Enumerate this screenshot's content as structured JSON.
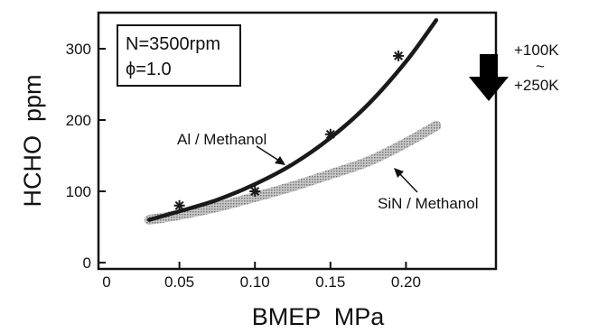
{
  "chart_data": {
    "type": "line",
    "xlabel": "BMEP  MPa",
    "ylabel": "HCHO  ppm",
    "xlim": [
      0,
      0.25
    ],
    "ylim": [
      0,
      350
    ],
    "x_ticks": [
      "0",
      "0.05",
      "0.10",
      "0.15",
      "0.20"
    ],
    "x_tick_values": [
      0,
      0.05,
      0.1,
      0.15,
      0.2
    ],
    "y_ticks": [
      "0",
      "100",
      "200",
      "300"
    ],
    "y_tick_values": [
      0,
      100,
      200,
      300
    ],
    "grid": false,
    "conditions": [
      "N=3500rpm",
      "ϕ=1.0"
    ],
    "series": [
      {
        "name": "Al / Methanol",
        "style": "solid-dark",
        "color": "#1a1a1a",
        "curve_x": [
          0.03,
          0.05,
          0.075,
          0.1,
          0.125,
          0.15,
          0.175,
          0.2,
          0.22
        ],
        "curve_y": [
          60,
          72,
          88,
          110,
          138,
          175,
          222,
          282,
          340
        ],
        "markers_x": [
          0.05,
          0.1,
          0.15,
          0.195
        ],
        "markers_y": [
          80,
          100,
          180,
          290
        ]
      },
      {
        "name": "SiN / Methanol",
        "style": "stippled-light",
        "color": "#9a9a9a",
        "curve_x": [
          0.03,
          0.05,
          0.075,
          0.1,
          0.125,
          0.15,
          0.175,
          0.2,
          0.22
        ],
        "curve_y": [
          60,
          67,
          78,
          92,
          107,
          124,
          142,
          168,
          192
        ]
      }
    ],
    "annotations": [
      {
        "text": "Al / Methanol",
        "series": "Al / Methanol"
      },
      {
        "text": "SiN / Methanol",
        "series": "SiN / Methanol"
      }
    ],
    "arrow_note": {
      "top": "+100K",
      "mid": "~",
      "bottom": "+250K",
      "color": "#000000"
    }
  }
}
